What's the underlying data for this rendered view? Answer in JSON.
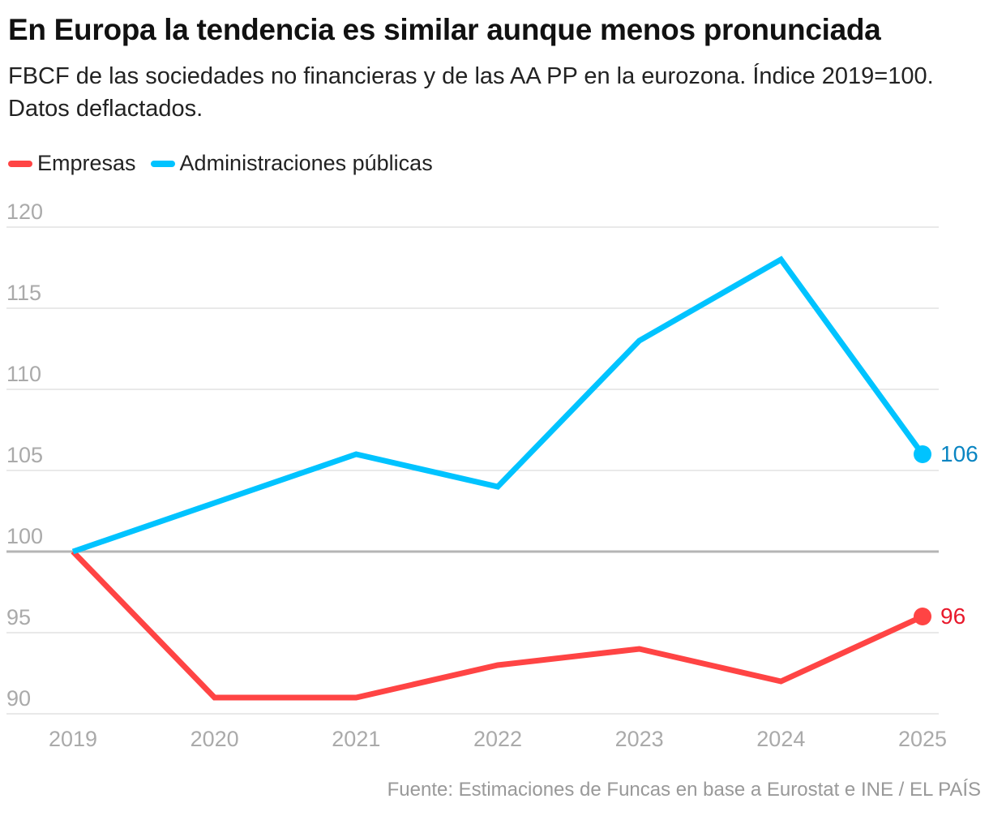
{
  "title": "En Europa la tendencia es similar aunque menos pronunciada",
  "subtitle": "FBCF de las sociedades no financieras y de las AA PP en la eurozona. Índice 2019=100. Datos deflactados.",
  "source": "Fuente: Estimaciones de Funcas en base a Eurostat e INE / EL PAÍS",
  "chart_data": {
    "type": "line",
    "x": [
      "2019",
      "2020",
      "2021",
      "2022",
      "2023",
      "2024",
      "2025"
    ],
    "series": [
      {
        "name": "Empresas",
        "color": "#ff4444",
        "label_color": "#e8192c",
        "values": [
          100,
          91,
          91,
          93,
          94,
          92,
          96
        ],
        "end_label": "96"
      },
      {
        "name": "Administraciones públicas",
        "color": "#00c3ff",
        "label_color": "#0a85c2",
        "values": [
          100,
          103,
          106,
          104,
          113,
          118,
          106
        ],
        "end_label": "106"
      }
    ],
    "ylim": [
      90,
      120
    ],
    "yticks": [
      "90",
      "95",
      "100",
      "105",
      "110",
      "115",
      "120"
    ],
    "baseline": 100,
    "grid": true,
    "legend_position": "top-left"
  }
}
